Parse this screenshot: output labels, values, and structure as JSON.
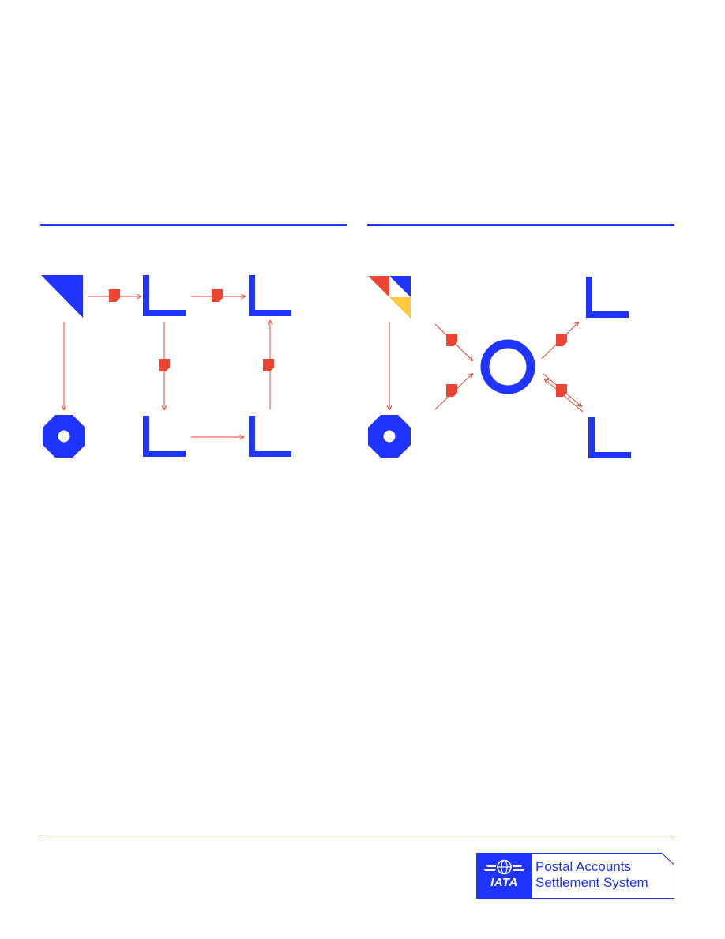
{
  "colors": {
    "primary_blue": "#1f34ff",
    "flow_red": "#ee4433",
    "accent_yellow": "#ffc93c",
    "background": "#ffffff"
  },
  "diagrams": [
    {
      "nodes": [
        {
          "icon": "triangle-icon"
        },
        {
          "icon": "corner-bracket-icon"
        },
        {
          "icon": "corner-bracket-icon"
        },
        {
          "icon": "octagon-ring-icon"
        },
        {
          "icon": "corner-bracket-icon"
        },
        {
          "icon": "corner-bracket-icon"
        }
      ],
      "connector_icon": "document-tag-icon"
    },
    {
      "nodes": [
        {
          "icon": "tricolor-triangle-icon"
        },
        {
          "icon": "octagon-ring-icon"
        },
        {
          "icon": "ring-hub-icon"
        },
        {
          "icon": "corner-bracket-icon"
        },
        {
          "icon": "corner-bracket-icon"
        }
      ],
      "connector_icon": "document-tag-icon"
    }
  ],
  "footer": {
    "logo": {
      "brand": "IATA",
      "line1": "Postal Accounts",
      "line2": "Settlement System"
    }
  }
}
